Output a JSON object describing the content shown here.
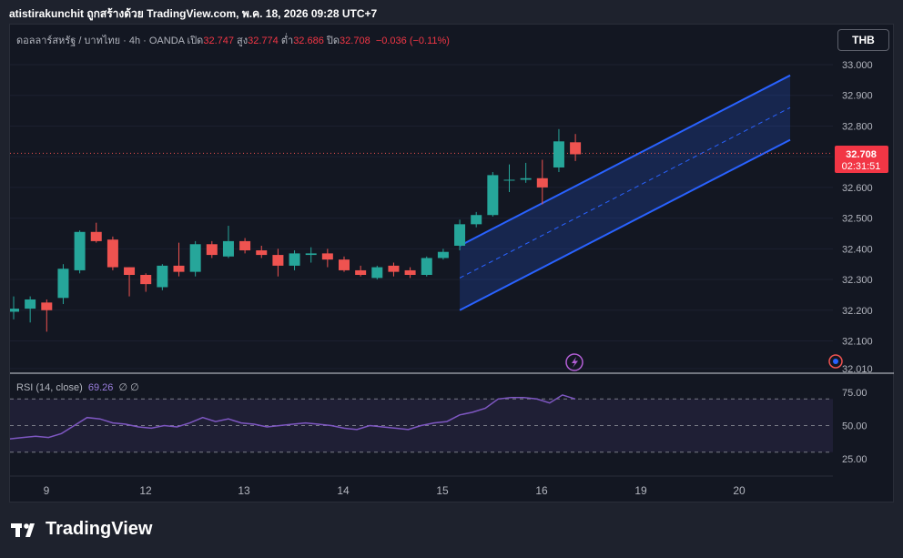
{
  "header_text": "atistirakunchit ถูกสร้างด้วย TradingView.com, พ.ค. 18, 2026 09:28 UTC+7",
  "legend": {
    "symbol": "ดอลลาร์สหรัฐ / บาทไทย · 4h · OANDA",
    "open_label": "เปิด",
    "open": "32.747",
    "high_label": "สูง",
    "high": "32.774",
    "low_label": "ต่ำ",
    "low": "32.686",
    "close_label": "ปิด",
    "close": "32.708",
    "change": "−0.036 (−0.11%)"
  },
  "currency_button": "THB",
  "price_tag": {
    "price": "32.708",
    "countdown": "02:31:51"
  },
  "rsi_legend": {
    "label": "RSI (14, close)",
    "value": "69.26",
    "extra": "∅ ∅"
  },
  "footer_logo": "TradingView",
  "colors": {
    "up": "#26a69a",
    "down": "#ef5350",
    "channel": "#2962ff",
    "rsi": "#7e57c2",
    "price_tag": "#f23645"
  },
  "chart_data": {
    "type": "candlestick",
    "title": "",
    "x_tick_labels": [
      "9",
      "12",
      "13",
      "14",
      "15",
      "16",
      "19",
      "20"
    ],
    "y_tick_labels": [
      "33.000",
      "32.900",
      "32.800",
      "32.700",
      "32.600",
      "32.500",
      "32.400",
      "32.300",
      "32.200",
      "32.100",
      "32.010"
    ],
    "ylim": [
      32.01,
      33.04
    ],
    "last_price": 32.708,
    "candles": [
      {
        "o": 32.195,
        "h": 32.245,
        "l": 32.17,
        "c": 32.205
      },
      {
        "o": 32.205,
        "h": 32.245,
        "l": 32.16,
        "c": 32.235
      },
      {
        "o": 32.225,
        "h": 32.235,
        "l": 32.13,
        "c": 32.2
      },
      {
        "o": 32.24,
        "h": 32.35,
        "l": 32.22,
        "c": 32.335
      },
      {
        "o": 32.33,
        "h": 32.46,
        "l": 32.32,
        "c": 32.455
      },
      {
        "o": 32.455,
        "h": 32.485,
        "l": 32.42,
        "c": 32.425
      },
      {
        "o": 32.43,
        "h": 32.44,
        "l": 32.33,
        "c": 32.34
      },
      {
        "o": 32.34,
        "h": 32.34,
        "l": 32.245,
        "c": 32.315
      },
      {
        "o": 32.315,
        "h": 32.32,
        "l": 32.26,
        "c": 32.285
      },
      {
        "o": 32.275,
        "h": 32.35,
        "l": 32.265,
        "c": 32.345
      },
      {
        "o": 32.345,
        "h": 32.42,
        "l": 32.31,
        "c": 32.325
      },
      {
        "o": 32.325,
        "h": 32.425,
        "l": 32.31,
        "c": 32.415
      },
      {
        "o": 32.415,
        "h": 32.425,
        "l": 32.37,
        "c": 32.38
      },
      {
        "o": 32.375,
        "h": 32.475,
        "l": 32.37,
        "c": 32.425
      },
      {
        "o": 32.425,
        "h": 32.435,
        "l": 32.385,
        "c": 32.395
      },
      {
        "o": 32.395,
        "h": 32.41,
        "l": 32.37,
        "c": 32.38
      },
      {
        "o": 32.38,
        "h": 32.4,
        "l": 32.31,
        "c": 32.345
      },
      {
        "o": 32.345,
        "h": 32.395,
        "l": 32.33,
        "c": 32.385
      },
      {
        "o": 32.38,
        "h": 32.405,
        "l": 32.355,
        "c": 32.385
      },
      {
        "o": 32.385,
        "h": 32.4,
        "l": 32.34,
        "c": 32.365
      },
      {
        "o": 32.365,
        "h": 32.375,
        "l": 32.325,
        "c": 32.33
      },
      {
        "o": 32.33,
        "h": 32.345,
        "l": 32.31,
        "c": 32.315
      },
      {
        "o": 32.305,
        "h": 32.345,
        "l": 32.3,
        "c": 32.34
      },
      {
        "o": 32.345,
        "h": 32.355,
        "l": 32.31,
        "c": 32.325
      },
      {
        "o": 32.33,
        "h": 32.34,
        "l": 32.305,
        "c": 32.315
      },
      {
        "o": 32.315,
        "h": 32.375,
        "l": 32.31,
        "c": 32.37
      },
      {
        "o": 32.37,
        "h": 32.4,
        "l": 32.365,
        "c": 32.39
      },
      {
        "o": 32.41,
        "h": 32.495,
        "l": 32.395,
        "c": 32.48
      },
      {
        "o": 32.48,
        "h": 32.52,
        "l": 32.47,
        "c": 32.51
      },
      {
        "o": 32.51,
        "h": 32.65,
        "l": 32.505,
        "c": 32.64
      },
      {
        "o": 32.625,
        "h": 32.675,
        "l": 32.585,
        "c": 32.625
      },
      {
        "o": 32.625,
        "h": 32.68,
        "l": 32.615,
        "c": 32.63
      },
      {
        "o": 32.63,
        "h": 32.69,
        "l": 32.545,
        "c": 32.6
      },
      {
        "o": 32.665,
        "h": 32.79,
        "l": 32.65,
        "c": 32.75
      },
      {
        "o": 32.747,
        "h": 32.774,
        "l": 32.686,
        "c": 32.708
      }
    ],
    "channel": {
      "upper": [
        [
          27,
          32.41
        ],
        [
          47,
          32.965
        ]
      ],
      "middle": [
        [
          27,
          32.305
        ],
        [
          47,
          32.86
        ]
      ],
      "lower": [
        [
          27,
          32.2
        ],
        [
          47,
          32.755
        ]
      ]
    },
    "rsi": {
      "title": "RSI (14, close)",
      "levels": [
        70,
        50,
        30
      ],
      "y_tick_labels": [
        "75.00",
        "50.00",
        "25.00"
      ],
      "ylim": [
        20,
        82
      ],
      "values": [
        40,
        41,
        42,
        41,
        44,
        50,
        56,
        55,
        52,
        51,
        49,
        48,
        50,
        49,
        52,
        56,
        53,
        55,
        52,
        51,
        49,
        50,
        51,
        52,
        51,
        50,
        48,
        47,
        50,
        49,
        48,
        47,
        50,
        52,
        53,
        58,
        60,
        63,
        70,
        71,
        71,
        70,
        67,
        73,
        70
      ]
    }
  }
}
